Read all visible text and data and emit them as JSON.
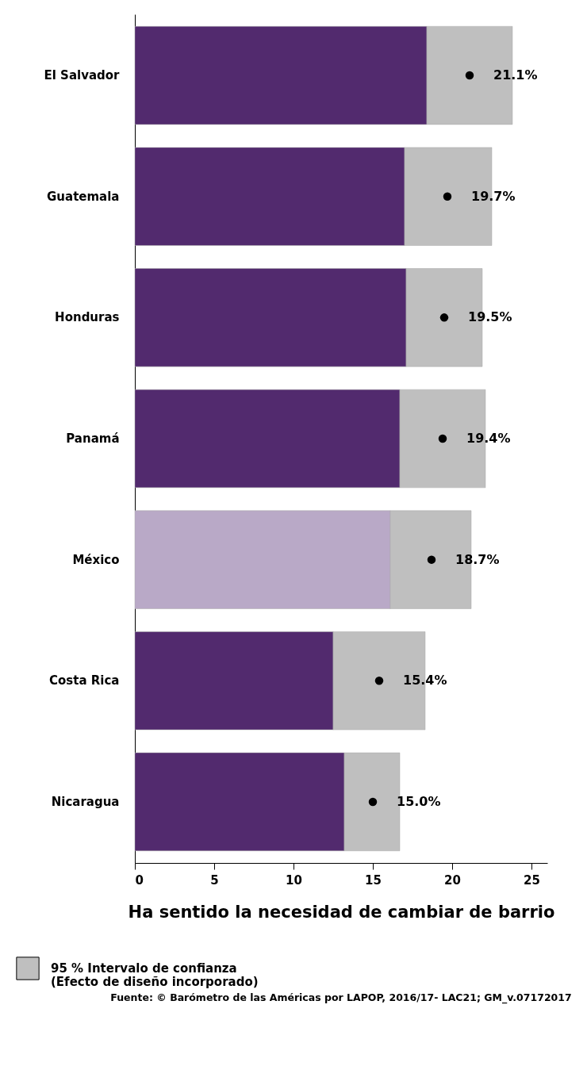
{
  "chart_data": {
    "type": "bar",
    "orientation": "horizontal",
    "stacked": true,
    "xlabel": "Ha sentido la necesidad de cambiar de barrio",
    "categories": [
      "El Salvador",
      "Guatemala",
      "Honduras",
      "Panamá",
      "México",
      "Costa Rica",
      "Nicaragua"
    ],
    "series": [
      {
        "colors": [
          "#522a6e",
          "#522a6e",
          "#522a6e",
          "#522a6e",
          "#b9a9c7",
          "#522a6e",
          "#522a6e"
        ],
        "values": [
          18.4,
          17.0,
          17.1,
          16.7,
          16.1,
          12.5,
          13.2
        ]
      },
      {
        "name": "95 % Intervalo de confianza\n(Efecto de diseño incorporado)",
        "color": "#bfbfbf",
        "values": [
          5.4,
          5.5,
          4.8,
          5.4,
          5.1,
          5.8,
          3.5
        ]
      },
      {
        "type": "scatter",
        "color": "#000000",
        "values": [
          21.1,
          19.7,
          19.5,
          19.4,
          18.7,
          15.4,
          15.0
        ],
        "value_labels": [
          "21.1%",
          "19.7%",
          "19.5%",
          "19.4%",
          "18.7%",
          "15.4%",
          "15.0%"
        ]
      }
    ],
    "xlim": [
      0,
      26
    ],
    "xticks": [
      0,
      5,
      10,
      15,
      20,
      25
    ],
    "grid": false,
    "legend": "bottom left",
    "annotations": [
      "Fuente: © Barómetro de las Américas por LAPOP, 2016/17- LAC21; GM_v.07172017"
    ]
  }
}
